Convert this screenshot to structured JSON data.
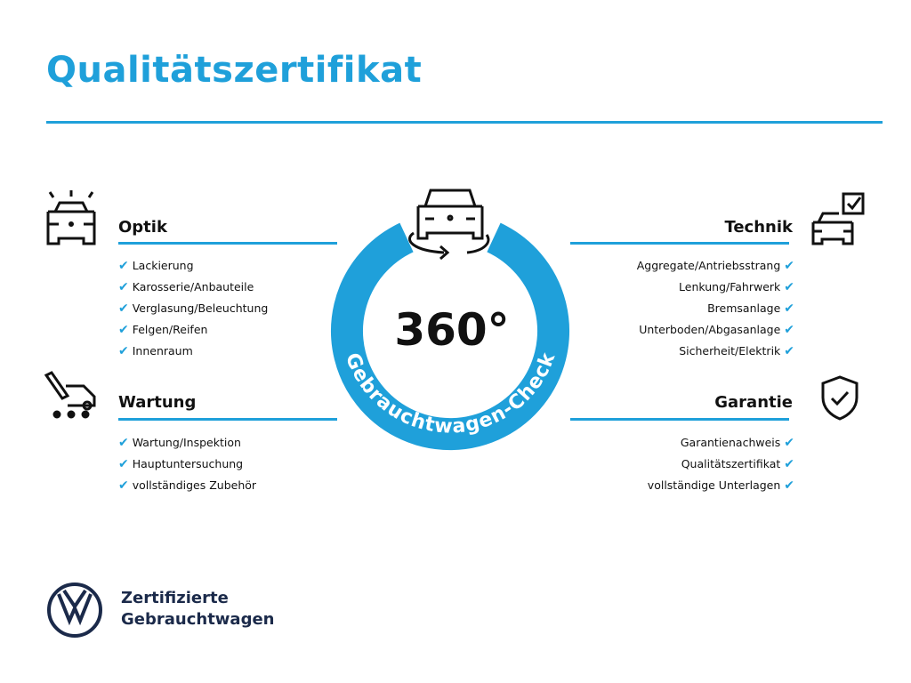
{
  "title": "Qualitätszertifikat",
  "accent": "#1fa0da",
  "center": {
    "big": "360°",
    "ring_text": "Gebrauchtwagen-Check",
    "icon": "car-rotate-icon"
  },
  "sections": {
    "optik": {
      "title": "Optik",
      "icon": "car-lights-icon",
      "items": [
        "Lackierung",
        "Karosserie/Anbauteile",
        "Verglasung/Beleuchtung",
        "Felgen/Reifen",
        "Innenraum"
      ]
    },
    "wartung": {
      "title": "Wartung",
      "icon": "service-van-icon",
      "items": [
        "Wartung/Inspektion",
        "Hauptuntersuchung",
        "vollständiges Zubehör"
      ]
    },
    "technik": {
      "title": "Technik",
      "icon": "car-checkbox-icon",
      "items": [
        "Aggregate/Antriebsstrang",
        "Lenkung/Fahrwerk",
        "Bremsanlage",
        "Unterboden/Abgasanlage",
        "Sicherheit/Elektrik"
      ]
    },
    "garantie": {
      "title": "Garantie",
      "icon": "shield-check-icon",
      "items": [
        "Garantienachweis",
        "Qualitätszertifikat",
        "vollständige Unterlagen"
      ]
    }
  },
  "check_glyph": "✔",
  "brand": {
    "line1": "Zertifizierte",
    "line2": "Gebrauchtwagen",
    "logo": "vw-logo"
  }
}
